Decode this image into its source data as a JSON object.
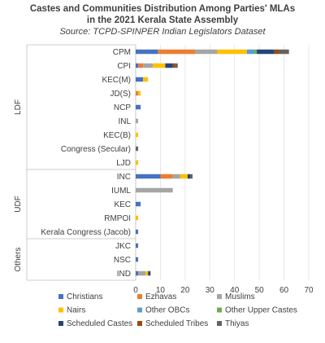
{
  "chart_data": {
    "type": "bar",
    "orientation": "horizontal",
    "stacked": true,
    "title_line1": "Castes and Communities Distribution Among Parties' MLAs",
    "title_line2": "in the 2021 Kerala State Assembly",
    "subtitle": "Source: TCPD-SPINPER Indian Legislators Dataset",
    "xlim": [
      0,
      70
    ],
    "xticks": [
      "0",
      "10",
      "20",
      "30",
      "40",
      "50",
      "60",
      "70"
    ],
    "groups": [
      {
        "name": "LDF",
        "categories": [
          "CPM",
          "CPI",
          "KEC(M)",
          "JD(S)",
          "NCP",
          "INL",
          "KEC(B)",
          "Congress (Secular)",
          "LJD"
        ]
      },
      {
        "name": "UDF",
        "categories": [
          "INC",
          "IUML",
          "KEC",
          "RMPOI",
          "Kerala Congress (Jacob)"
        ]
      },
      {
        "name": "Others",
        "categories": [
          "JKC",
          "NSC",
          "IND"
        ]
      }
    ],
    "series": [
      {
        "name": "Christians",
        "color": "#4472c4",
        "values": [
          9,
          1,
          3,
          0,
          2,
          0,
          0,
          0,
          0,
          10,
          0,
          2,
          0,
          1,
          1,
          1,
          1
        ]
      },
      {
        "name": "Ezhavas",
        "color": "#ed7d31",
        "values": [
          15,
          2,
          0,
          1,
          0,
          0,
          0,
          0,
          0,
          5,
          0,
          0,
          0,
          0,
          0,
          0,
          0
        ]
      },
      {
        "name": "Muslims",
        "color": "#a5a5a5",
        "values": [
          9,
          4,
          0,
          0,
          0,
          1,
          0,
          0,
          0,
          3,
          15,
          0,
          0,
          0,
          0,
          0,
          3
        ]
      },
      {
        "name": "Nairs",
        "color": "#ffc000",
        "values": [
          12,
          5,
          2,
          1,
          0,
          0,
          1,
          0,
          1,
          3,
          0,
          0,
          1,
          0,
          0,
          0,
          1
        ]
      },
      {
        "name": "Other OBCs",
        "color": "#5b9bd5",
        "values": [
          3,
          0,
          0,
          0,
          0,
          0,
          0,
          0,
          0,
          0,
          0,
          0,
          0,
          0,
          0,
          0,
          0
        ]
      },
      {
        "name": "Other Upper Castes",
        "color": "#70ad47",
        "values": [
          1,
          0,
          0,
          0,
          0,
          0,
          0,
          0,
          0,
          0,
          0,
          0,
          0,
          0,
          0,
          0,
          0
        ]
      },
      {
        "name": "Scheduled Castes",
        "color": "#264478",
        "values": [
          7,
          3,
          0,
          0,
          0,
          0,
          0,
          0,
          0,
          1,
          0,
          0,
          0,
          0,
          0,
          0,
          1
        ]
      },
      {
        "name": "Scheduled Tribes",
        "color": "#9e480e",
        "values": [
          2,
          1,
          0,
          0,
          0,
          0,
          0,
          0,
          0,
          0,
          0,
          0,
          0,
          0,
          0,
          0,
          0
        ]
      },
      {
        "name": "Thiyas",
        "color": "#636363",
        "values": [
          4,
          1,
          0,
          0,
          0,
          0,
          0,
          1,
          0,
          1,
          0,
          0,
          0,
          0,
          0,
          0,
          0
        ]
      }
    ],
    "grid": true,
    "legend_position": "bottom"
  }
}
